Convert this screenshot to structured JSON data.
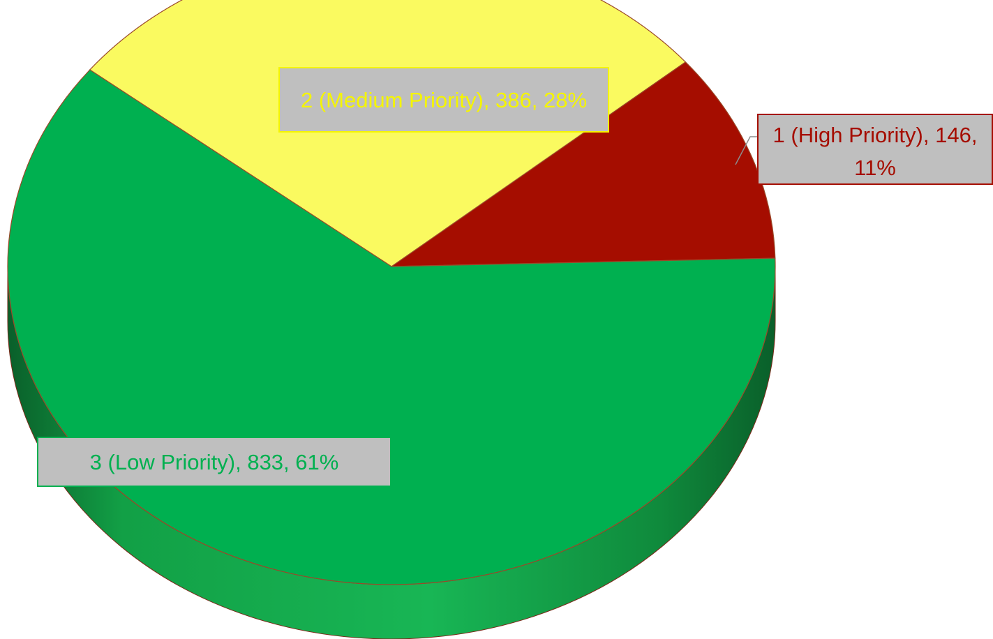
{
  "chart_data": {
    "type": "pie",
    "style": "3d",
    "title": "",
    "slices": [
      {
        "name": "1 (High Priority)",
        "value": 146,
        "percent": "11%",
        "color": "#A50D00",
        "label_lines": [
          "1 (High Priority), 146,",
          "11%"
        ]
      },
      {
        "name": "2 (Medium Priority)",
        "value": 386,
        "percent": "28%",
        "color": "#FAFA60",
        "label_lines": [
          "2 (Medium Priority), 386, 28%"
        ]
      },
      {
        "name": "3 (Low Priority)",
        "value": 833,
        "percent": "61%",
        "color": "#00B050",
        "label_lines": [
          "3 (Low Priority), 833, 61%"
        ]
      }
    ],
    "label_box_color": "#BFBFBF",
    "legend": "none"
  }
}
